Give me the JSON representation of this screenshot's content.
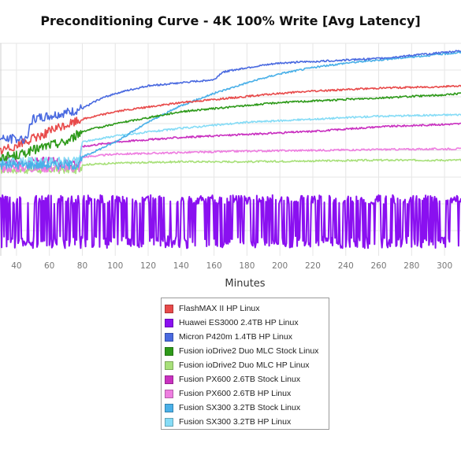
{
  "chart_data": {
    "type": "line",
    "title": "Preconditioning Curve - 4K 100% Write [Avg Latency]",
    "xlabel": "Minutes",
    "ylabel": "",
    "xlim": [
      30,
      310
    ],
    "xticks": [
      40,
      60,
      80,
      100,
      120,
      140,
      160,
      180,
      200,
      220,
      240,
      260,
      280,
      300
    ],
    "grid": true,
    "legend_position": "bottom-center",
    "series": [
      {
        "name": "FlashMAX II HP Linux",
        "color": "#e84a4a",
        "x": [
          30,
          38,
          48,
          60,
          80,
          100,
          120,
          140,
          160,
          180,
          200,
          220,
          240,
          260,
          280,
          300,
          310
        ],
        "y": [
          0.34,
          0.37,
          0.41,
          0.47,
          0.55,
          0.6,
          0.63,
          0.66,
          0.68,
          0.7,
          0.72,
          0.735,
          0.745,
          0.755,
          0.76,
          0.765,
          0.77
        ]
      },
      {
        "name": "Huawei ES3000 2.4TB HP Linux",
        "color": "#8a10f0",
        "x": [
          30,
          310
        ],
        "y": [
          -0.05,
          -0.05
        ],
        "oscillating": true,
        "range": [
          -0.3,
          0.05
        ]
      },
      {
        "name": "Micron P420m 1.4TB HP Linux",
        "color": "#4a6ae0",
        "x": [
          30,
          44,
          46,
          50,
          60,
          75,
          80,
          90,
          100,
          120,
          140,
          150,
          160,
          165,
          180,
          200,
          220,
          240,
          260,
          280,
          300,
          310
        ],
        "y": [
          0.42,
          0.42,
          0.43,
          0.55,
          0.57,
          0.6,
          0.62,
          0.68,
          0.72,
          0.77,
          0.79,
          0.8,
          0.81,
          0.86,
          0.89,
          0.92,
          0.93,
          0.94,
          0.95,
          0.97,
          0.99,
          1.0
        ]
      },
      {
        "name": "Fusion ioDrive2 Duo MLC Stock Linux",
        "color": "#2e9a1a",
        "x": [
          30,
          40,
          60,
          70,
          80,
          100,
          120,
          140,
          160,
          180,
          200,
          220,
          240,
          260,
          280,
          300,
          310
        ],
        "y": [
          0.3,
          0.31,
          0.38,
          0.4,
          0.47,
          0.52,
          0.56,
          0.6,
          0.62,
          0.64,
          0.66,
          0.67,
          0.68,
          0.69,
          0.7,
          0.71,
          0.72
        ]
      },
      {
        "name": "Fusion ioDrive2 Duo MLC HP Linux",
        "color": "#a8e07a",
        "x": [
          30,
          78,
          80,
          100,
          140,
          180,
          220,
          260,
          310
        ],
        "y": [
          0.22,
          0.22,
          0.25,
          0.26,
          0.27,
          0.27,
          0.275,
          0.28,
          0.28
        ]
      },
      {
        "name": "Fusion PX600 2.6TB Stock Linux",
        "color": "#c930c0",
        "x": [
          30,
          78,
          80,
          100,
          140,
          180,
          220,
          260,
          310
        ],
        "y": [
          0.27,
          0.27,
          0.37,
          0.4,
          0.43,
          0.45,
          0.47,
          0.5,
          0.52
        ]
      },
      {
        "name": "Fusion PX600 2.6TB HP Linux",
        "color": "#ee7ee0",
        "x": [
          30,
          78,
          80,
          100,
          140,
          180,
          220,
          260,
          310
        ],
        "y": [
          0.23,
          0.23,
          0.3,
          0.32,
          0.33,
          0.34,
          0.345,
          0.35,
          0.355
        ]
      },
      {
        "name": "Fusion SX300 3.2TB Stock Linux",
        "color": "#4ab0e8",
        "x": [
          30,
          78,
          80,
          100,
          120,
          140,
          160,
          180,
          200,
          220,
          240,
          260,
          280,
          300,
          310
        ],
        "y": [
          0.25,
          0.25,
          0.3,
          0.4,
          0.53,
          0.64,
          0.72,
          0.79,
          0.85,
          0.89,
          0.92,
          0.94,
          0.96,
          0.98,
          0.99
        ]
      },
      {
        "name": "Fusion SX300 3.2TB HP Linux",
        "color": "#86dcf6",
        "x": [
          30,
          78,
          80,
          100,
          140,
          180,
          220,
          260,
          310
        ],
        "y": [
          0.27,
          0.27,
          0.4,
          0.44,
          0.49,
          0.53,
          0.55,
          0.57,
          0.58
        ]
      }
    ]
  }
}
